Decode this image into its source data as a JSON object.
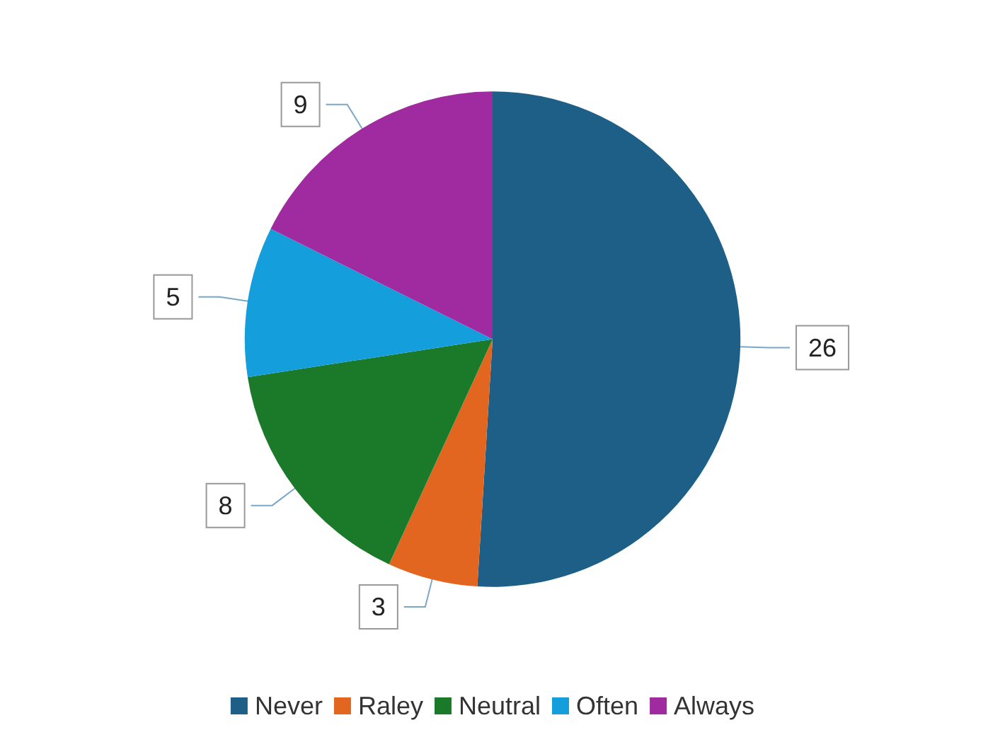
{
  "chart_data": {
    "type": "pie",
    "categories": [
      "Never",
      "Raley",
      "Neutral",
      "Often",
      "Always"
    ],
    "values": [
      26,
      3,
      8,
      5,
      9
    ],
    "colors": [
      "#1d5f87",
      "#e2661f",
      "#1b7a2a",
      "#149fdc",
      "#a02a9f"
    ],
    "data_labels": true,
    "legend": "bottom"
  }
}
